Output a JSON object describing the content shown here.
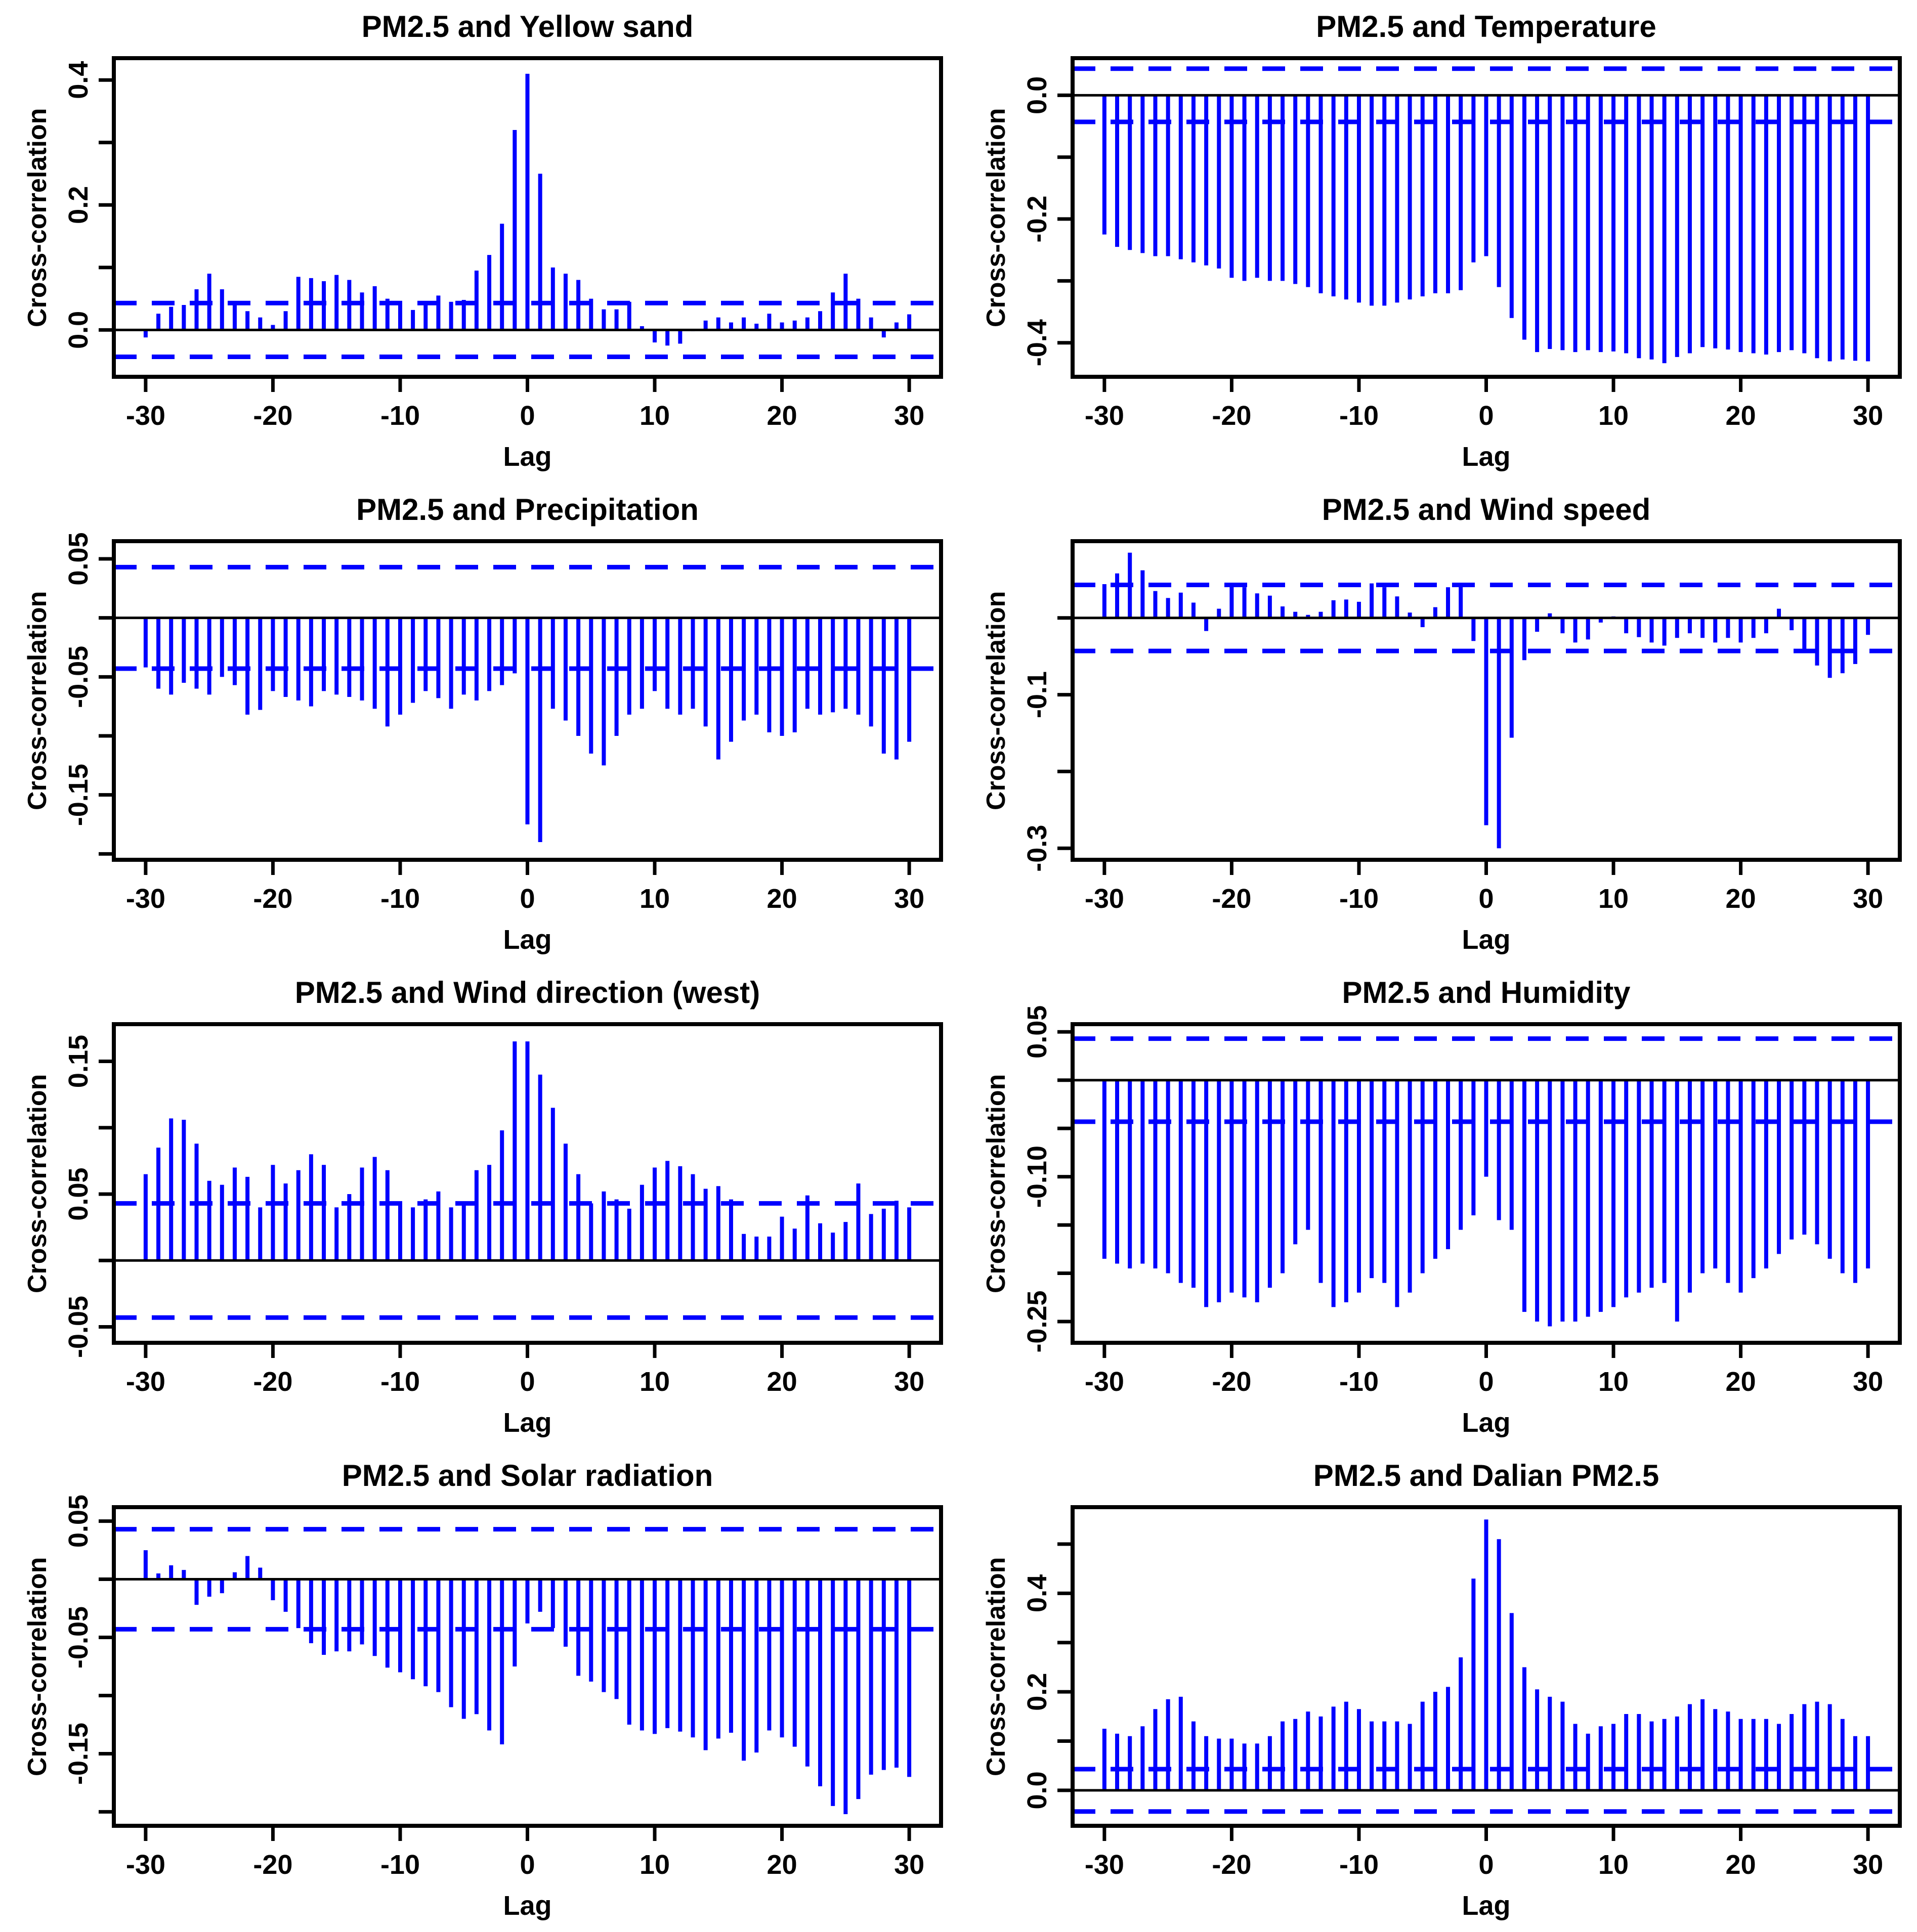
{
  "page": {
    "background": "#ffffff"
  },
  "colors": {
    "series": "#0000ff",
    "conf_line": "#0000ff",
    "zero_line": "#000000",
    "axis": "#000000",
    "text": "#000000"
  },
  "axis_labels": {
    "x": "Lag",
    "y": "Cross-correlation"
  },
  "lag_axis": {
    "start": -30,
    "end": 30,
    "step": 1,
    "xticks": [
      -30,
      -20,
      -10,
      0,
      10,
      20,
      30
    ],
    "xlim": [
      -32.5,
      32.5
    ]
  },
  "chart_data": [
    {
      "type": "bar",
      "title": "PM2.5 and Yellow sand",
      "xlabel": "Lag",
      "ylabel": "Cross-correlation",
      "lag_start": -30,
      "lag_end": 30,
      "values": [
        -0.012,
        0.026,
        0.037,
        0.04,
        0.065,
        0.09,
        0.065,
        0.043,
        0.03,
        0.02,
        0.008,
        0.03,
        0.085,
        0.083,
        0.078,
        0.088,
        0.08,
        0.06,
        0.07,
        0.05,
        0.04,
        0.032,
        0.04,
        0.055,
        0.045,
        0.048,
        0.095,
        0.12,
        0.17,
        0.32,
        0.41,
        0.25,
        0.1,
        0.09,
        0.08,
        0.05,
        0.033,
        0.033,
        0.045,
        0.006,
        -0.02,
        -0.025,
        -0.022,
        -0.002,
        0.015,
        0.02,
        0.012,
        0.02,
        0.01,
        0.026,
        0.012,
        0.015,
        0.02,
        0.03,
        0.06,
        0.09,
        0.05,
        0.02,
        -0.012,
        0.012,
        0.025
      ],
      "conf_upper": 0.043,
      "conf_lower": -0.043,
      "ylim": [
        -0.075,
        0.435
      ],
      "yticks": [
        0.0,
        0.2,
        0.4
      ],
      "ytick_labels": [
        "0.0",
        "0.2",
        "0.4"
      ],
      "yticks_minor": [
        0.1,
        0.3
      ],
      "xticks": [
        -30,
        -20,
        -10,
        0,
        10,
        20,
        30
      ]
    },
    {
      "type": "bar",
      "title": "PM2.5 and Temperature",
      "xlabel": "Lag",
      "ylabel": "Cross-correlation",
      "lag_start": -30,
      "lag_end": 30,
      "values": [
        -0.225,
        -0.245,
        -0.25,
        -0.255,
        -0.26,
        -0.26,
        -0.265,
        -0.27,
        -0.275,
        -0.28,
        -0.295,
        -0.3,
        -0.295,
        -0.3,
        -0.3,
        -0.305,
        -0.31,
        -0.32,
        -0.325,
        -0.33,
        -0.335,
        -0.34,
        -0.34,
        -0.335,
        -0.33,
        -0.325,
        -0.32,
        -0.32,
        -0.315,
        -0.27,
        -0.26,
        -0.31,
        -0.36,
        -0.395,
        -0.415,
        -0.41,
        -0.412,
        -0.415,
        -0.412,
        -0.415,
        -0.414,
        -0.417,
        -0.425,
        -0.427,
        -0.433,
        -0.423,
        -0.417,
        -0.407,
        -0.409,
        -0.411,
        -0.415,
        -0.417,
        -0.419,
        -0.415,
        -0.412,
        -0.417,
        -0.425,
        -0.43,
        -0.427,
        -0.429,
        -0.43
      ],
      "conf_upper": 0.043,
      "conf_lower": -0.043,
      "ylim": [
        -0.455,
        0.06
      ],
      "yticks": [
        0.0,
        -0.2,
        -0.4
      ],
      "ytick_labels": [
        "0.0",
        "-0.2",
        "-0.4"
      ],
      "yticks_minor": [
        -0.1,
        -0.3
      ],
      "xticks": [
        -30,
        -20,
        -10,
        0,
        10,
        20,
        30
      ]
    },
    {
      "type": "bar",
      "title": "PM2.5 and Precipitation",
      "xlabel": "Lag",
      "ylabel": "Cross-correlation",
      "lag_start": -30,
      "lag_end": 30,
      "values": [
        -0.042,
        -0.06,
        -0.065,
        -0.055,
        -0.06,
        -0.065,
        -0.05,
        -0.057,
        -0.082,
        -0.078,
        -0.062,
        -0.067,
        -0.07,
        -0.075,
        -0.062,
        -0.065,
        -0.067,
        -0.07,
        -0.077,
        -0.092,
        -0.082,
        -0.072,
        -0.062,
        -0.068,
        -0.077,
        -0.065,
        -0.07,
        -0.062,
        -0.057,
        -0.047,
        -0.175,
        -0.19,
        -0.077,
        -0.087,
        -0.1,
        -0.115,
        -0.125,
        -0.1,
        -0.082,
        -0.077,
        -0.062,
        -0.077,
        -0.082,
        -0.077,
        -0.092,
        -0.12,
        -0.105,
        -0.087,
        -0.082,
        -0.097,
        -0.1,
        -0.097,
        -0.077,
        -0.082,
        -0.08,
        -0.077,
        -0.082,
        -0.092,
        -0.115,
        -0.12,
        -0.105
      ],
      "conf_upper": 0.043,
      "conf_lower": -0.043,
      "ylim": [
        -0.205,
        0.065
      ],
      "yticks": [
        0.05,
        -0.05,
        -0.15
      ],
      "ytick_labels": [
        "0.05",
        "-0.05",
        "-0.15"
      ],
      "yticks_minor": [
        0.0,
        -0.1,
        -0.2
      ],
      "xticks": [
        -30,
        -20,
        -10,
        0,
        10,
        20,
        30
      ]
    },
    {
      "type": "bar",
      "title": "PM2.5 and Wind speed",
      "xlabel": "Lag",
      "ylabel": "Cross-correlation",
      "lag_start": -30,
      "lag_end": 30,
      "values": [
        0.044,
        0.058,
        0.085,
        0.062,
        0.035,
        0.026,
        0.033,
        0.02,
        -0.017,
        0.012,
        0.044,
        0.04,
        0.032,
        0.029,
        0.015,
        0.008,
        0.004,
        0.008,
        0.023,
        0.024,
        0.021,
        0.045,
        0.04,
        0.028,
        0.007,
        -0.012,
        0.014,
        0.04,
        0.045,
        -0.03,
        -0.27,
        -0.3,
        -0.156,
        -0.055,
        -0.018,
        0.006,
        -0.02,
        -0.032,
        -0.028,
        -0.006,
        0.002,
        -0.02,
        -0.025,
        -0.032,
        -0.036,
        -0.026,
        -0.02,
        -0.026,
        -0.032,
        -0.026,
        -0.032,
        -0.026,
        -0.02,
        0.012,
        -0.016,
        -0.042,
        -0.062,
        -0.078,
        -0.072,
        -0.06,
        -0.022
      ],
      "conf_upper": 0.043,
      "conf_lower": -0.043,
      "ylim": [
        -0.315,
        0.1
      ],
      "yticks": [
        -0.1,
        -0.3
      ],
      "ytick_labels": [
        "-0.1",
        "-0.3"
      ],
      "yticks_minor": [
        0.0,
        -0.2
      ],
      "xticks": [
        -30,
        -20,
        -10,
        0,
        10,
        20,
        30
      ]
    },
    {
      "type": "bar",
      "title": "PM2.5 and Wind direction (west)",
      "xlabel": "Lag",
      "ylabel": "Cross-correlation",
      "lag_start": -30,
      "lag_end": 30,
      "values": [
        0.065,
        0.085,
        0.107,
        0.106,
        0.088,
        0.06,
        0.057,
        0.07,
        0.063,
        0.04,
        0.072,
        0.058,
        0.068,
        0.08,
        0.072,
        0.04,
        0.05,
        0.07,
        0.078,
        0.068,
        0.042,
        0.04,
        0.046,
        0.052,
        0.04,
        0.042,
        0.068,
        0.072,
        0.098,
        0.165,
        0.165,
        0.14,
        0.115,
        0.088,
        0.065,
        0.043,
        0.052,
        0.046,
        0.039,
        0.057,
        0.07,
        0.075,
        0.071,
        0.065,
        0.054,
        0.056,
        0.046,
        0.02,
        0.018,
        0.018,
        0.033,
        0.024,
        0.049,
        0.028,
        0.021,
        0.029,
        0.058,
        0.035,
        0.039,
        0.045,
        0.04
      ],
      "conf_upper": 0.043,
      "conf_lower": -0.043,
      "ylim": [
        -0.062,
        0.178
      ],
      "yticks": [
        0.15,
        0.05,
        -0.05
      ],
      "ytick_labels": [
        "0.15",
        "0.05",
        "-0.05"
      ],
      "yticks_minor": [
        0.1,
        0.0
      ],
      "xticks": [
        -30,
        -20,
        -10,
        0,
        10,
        20,
        30
      ]
    },
    {
      "type": "bar",
      "title": "PM2.5 and Humidity",
      "xlabel": "Lag",
      "ylabel": "Cross-correlation",
      "lag_start": -30,
      "lag_end": 30,
      "values": [
        -0.185,
        -0.19,
        -0.195,
        -0.19,
        -0.195,
        -0.2,
        -0.21,
        -0.215,
        -0.235,
        -0.23,
        -0.22,
        -0.225,
        -0.23,
        -0.215,
        -0.2,
        -0.17,
        -0.155,
        -0.21,
        -0.235,
        -0.23,
        -0.22,
        -0.205,
        -0.21,
        -0.235,
        -0.22,
        -0.2,
        -0.185,
        -0.175,
        -0.155,
        -0.14,
        -0.1,
        -0.145,
        -0.155,
        -0.24,
        -0.25,
        -0.255,
        -0.25,
        -0.25,
        -0.245,
        -0.24,
        -0.235,
        -0.225,
        -0.22,
        -0.215,
        -0.21,
        -0.25,
        -0.22,
        -0.2,
        -0.195,
        -0.21,
        -0.22,
        -0.205,
        -0.195,
        -0.18,
        -0.165,
        -0.16,
        -0.17,
        -0.185,
        -0.2,
        -0.21,
        -0.195
      ],
      "conf_upper": 0.043,
      "conf_lower": -0.043,
      "ylim": [
        -0.272,
        0.058
      ],
      "yticks": [
        0.05,
        -0.1,
        -0.25
      ],
      "ytick_labels": [
        "0.05",
        "-0.10",
        "-0.25"
      ],
      "yticks_minor": [
        0.0,
        -0.05,
        -0.15,
        -0.2
      ],
      "xticks": [
        -30,
        -20,
        -10,
        0,
        10,
        20,
        30
      ]
    },
    {
      "type": "bar",
      "title": "PM2.5 and Solar radiation",
      "xlabel": "Lag",
      "ylabel": "Cross-correlation",
      "lag_start": -30,
      "lag_end": 30,
      "values": [
        0.025,
        0.005,
        0.012,
        0.008,
        -0.022,
        -0.015,
        -0.012,
        0.006,
        0.02,
        0.01,
        -0.018,
        -0.028,
        -0.042,
        -0.055,
        -0.065,
        -0.062,
        -0.062,
        -0.056,
        -0.066,
        -0.076,
        -0.08,
        -0.086,
        -0.092,
        -0.097,
        -0.11,
        -0.12,
        -0.116,
        -0.13,
        -0.142,
        -0.075,
        -0.038,
        -0.028,
        -0.042,
        -0.058,
        -0.083,
        -0.088,
        -0.097,
        -0.103,
        -0.125,
        -0.13,
        -0.133,
        -0.128,
        -0.131,
        -0.136,
        -0.147,
        -0.137,
        -0.132,
        -0.156,
        -0.149,
        -0.13,
        -0.136,
        -0.144,
        -0.161,
        -0.178,
        -0.195,
        -0.202,
        -0.189,
        -0.168,
        -0.164,
        -0.162,
        -0.17
      ],
      "conf_upper": 0.043,
      "conf_lower": -0.043,
      "ylim": [
        -0.212,
        0.062
      ],
      "yticks": [
        0.05,
        -0.05,
        -0.15
      ],
      "ytick_labels": [
        "0.05",
        "-0.05",
        "-0.15"
      ],
      "yticks_minor": [
        0.0,
        -0.1,
        -0.2
      ],
      "xticks": [
        -30,
        -20,
        -10,
        0,
        10,
        20,
        30
      ]
    },
    {
      "type": "bar",
      "title": "PM2.5 and Dalian PM2.5",
      "xlabel": "Lag",
      "ylabel": "Cross-correlation",
      "lag_start": -30,
      "lag_end": 30,
      "values": [
        0.125,
        0.115,
        0.11,
        0.13,
        0.165,
        0.185,
        0.19,
        0.14,
        0.11,
        0.105,
        0.105,
        0.095,
        0.095,
        0.11,
        0.14,
        0.145,
        0.16,
        0.15,
        0.17,
        0.18,
        0.165,
        0.14,
        0.14,
        0.14,
        0.135,
        0.18,
        0.2,
        0.21,
        0.27,
        0.43,
        0.55,
        0.51,
        0.36,
        0.25,
        0.205,
        0.19,
        0.18,
        0.135,
        0.115,
        0.13,
        0.135,
        0.155,
        0.155,
        0.14,
        0.145,
        0.15,
        0.175,
        0.185,
        0.165,
        0.16,
        0.145,
        0.145,
        0.145,
        0.135,
        0.155,
        0.175,
        0.18,
        0.175,
        0.145,
        0.11,
        0.11
      ],
      "conf_upper": 0.043,
      "conf_lower": -0.043,
      "ylim": [
        -0.072,
        0.575
      ],
      "yticks": [
        0.0,
        0.2,
        0.4
      ],
      "ytick_labels": [
        "0.0",
        "0.2",
        "0.4"
      ],
      "yticks_minor": [
        0.1,
        0.3,
        0.5
      ],
      "xticks": [
        -30,
        -20,
        -10,
        0,
        10,
        20,
        30
      ]
    }
  ]
}
